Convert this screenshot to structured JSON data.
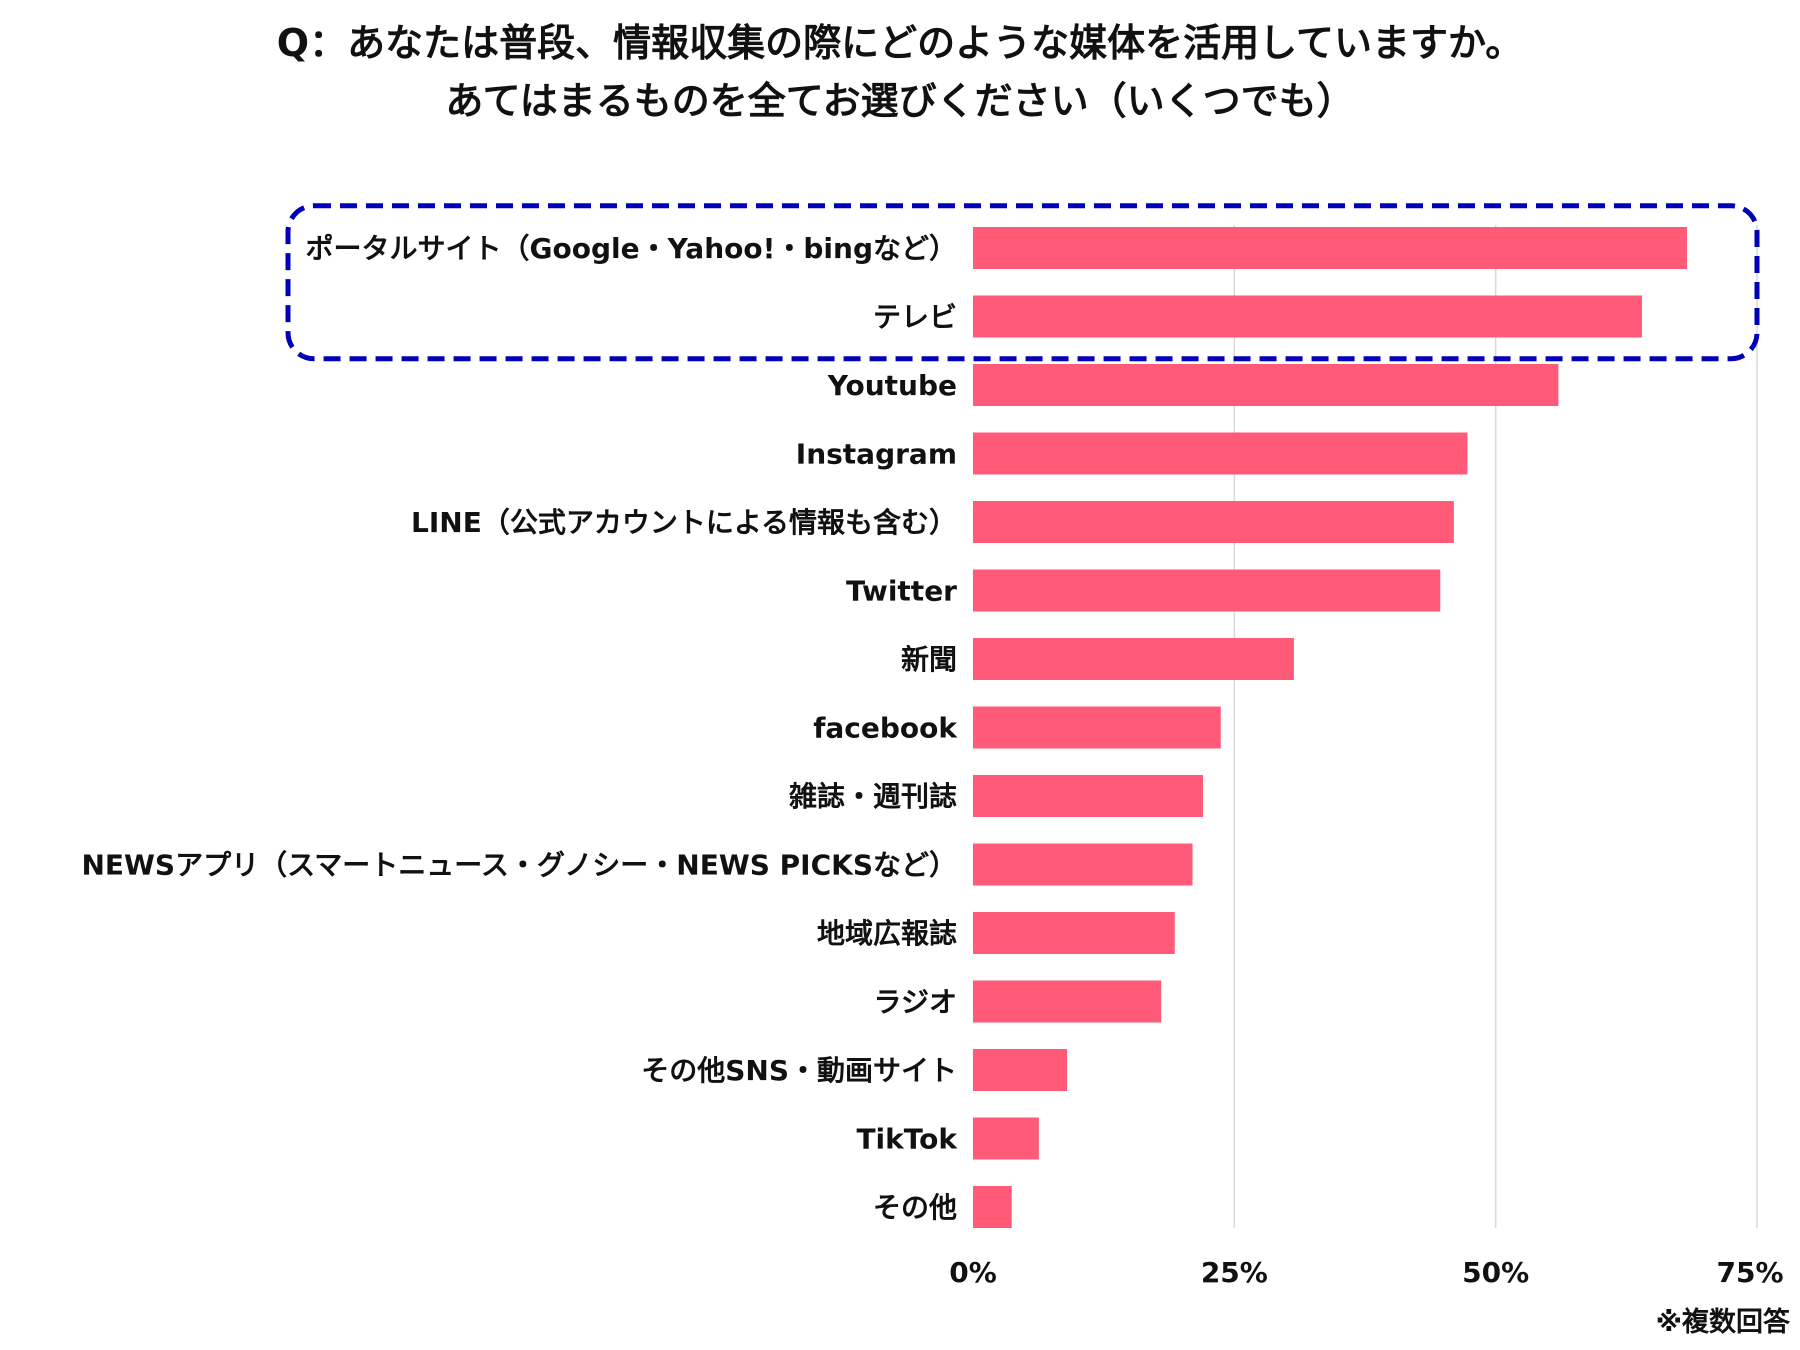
{
  "title_lines": [
    "Q：あなたは普段、情報収集の際にどのような媒体を活用していますか。",
    "あてはまるものを全てお選びください（いくつでも）"
  ],
  "footnote": "※複数回答",
  "colors": {
    "bar": "#ff5a78",
    "grid": "#d9d9d9",
    "highlight_border": "#0000b8",
    "text": "#111111"
  },
  "chart_data": {
    "type": "bar",
    "orientation": "horizontal",
    "categories": [
      "ポータルサイト（Google・Yahoo!・bingなど）",
      "テレビ",
      "Youtube",
      "Instagram",
      "LINE（公式アカウントによる情報も含む）",
      "Twitter",
      "新聞",
      "facebook",
      "雑誌・週刊誌",
      "NEWSアプリ（スマートニュース・グノシー・NEWS PICKSなど）",
      "地域広報誌",
      "ラジオ",
      "その他SNS・動画サイト",
      "TikTok",
      "その他"
    ],
    "values": [
      68.3,
      64.0,
      56.0,
      47.3,
      46.0,
      44.7,
      30.7,
      23.7,
      22.0,
      21.0,
      19.3,
      18.0,
      9.0,
      6.3,
      3.7
    ],
    "value_unit": "%",
    "xlim": [
      0,
      75
    ],
    "x_ticks": [
      0,
      25,
      50,
      75
    ],
    "x_tick_labels": [
      "0%",
      "25%",
      "50%",
      "75%"
    ],
    "grid": "vertical",
    "highlighted_categories": [
      0,
      1
    ],
    "highlight_style": "dashed rounded box"
  }
}
